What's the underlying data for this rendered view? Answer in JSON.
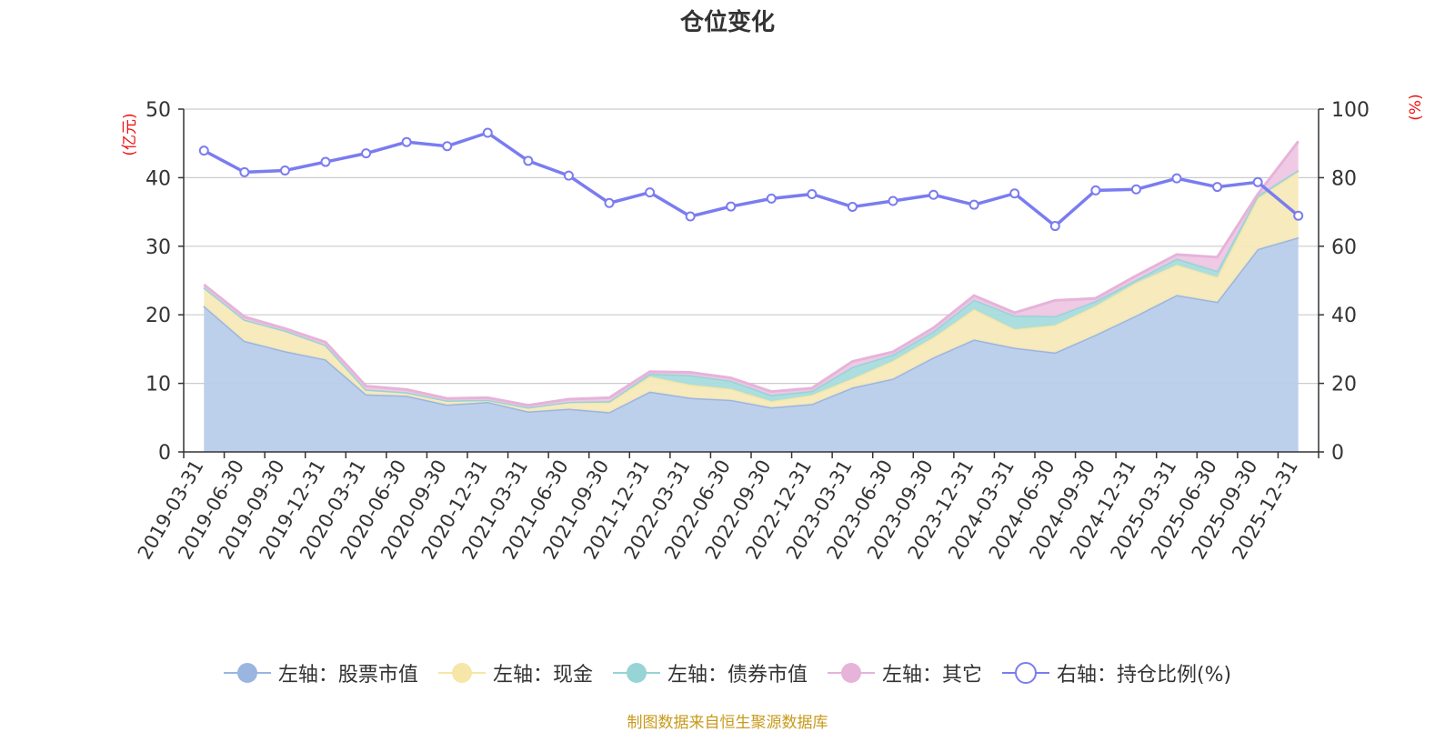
{
  "title": "仓位变化",
  "source": "制图数据来自恒生聚源数据库",
  "colors": {
    "stock": "#9ab5e0",
    "stock_fill": "#b8cdeb",
    "cash": "#f6e6a8",
    "cash_fill": "#f7e9b8",
    "bond": "#96d4d6",
    "bond_fill": "#a8dcde",
    "other": "#e6b3d9",
    "other_fill": "#efc7e4",
    "ratio": "#7a7cf0",
    "axis_unit": "#ee1111",
    "grid": "#cccccc",
    "text": "#333333"
  },
  "chart_data": {
    "type": "area",
    "title": "仓位变化",
    "y_left_label": "(亿元)",
    "y_right_label": "(%)",
    "y_left_range": [
      0,
      50
    ],
    "y_right_range": [
      0,
      100
    ],
    "y_left_ticks": [
      "0",
      "10",
      "20",
      "30",
      "40",
      "50"
    ],
    "y_right_ticks": [
      "0",
      "20",
      "40",
      "60",
      "80",
      "100"
    ],
    "grid": true,
    "legend_position": "bottom",
    "categories": [
      "2019-03-31",
      "2019-06-30",
      "2019-09-30",
      "2019-12-31",
      "2020-03-31",
      "2020-06-30",
      "2020-09-30",
      "2020-12-31",
      "2021-03-31",
      "2021-06-30",
      "2021-09-30",
      "2021-12-31",
      "2022-03-31",
      "2022-06-30",
      "2022-09-30",
      "2022-12-31",
      "2023-03-31",
      "2023-06-30",
      "2023-09-30",
      "2023-12-31",
      "2024-03-31",
      "2024-06-30",
      "2024-09-30",
      "2024-12-31",
      "2025-03-31",
      "2025-06-30",
      "2025-09-30",
      "2025-12-31"
    ],
    "stacked_series": [
      {
        "name": "左轴：股票市值",
        "key": "stock",
        "values": [
          21.3,
          16.2,
          14.7,
          13.5,
          8.4,
          8.2,
          6.9,
          7.3,
          5.9,
          6.3,
          5.8,
          8.8,
          7.9,
          7.6,
          6.5,
          7.0,
          9.4,
          10.7,
          13.8,
          16.4,
          15.2,
          14.5,
          17.1,
          19.9,
          22.9,
          21.9,
          29.6,
          31.3
        ]
      },
      {
        "name": "左轴：现金",
        "key": "cash",
        "values": [
          2.7,
          3.1,
          3.0,
          2.1,
          0.7,
          0.5,
          0.6,
          0.3,
          0.6,
          1.0,
          1.4,
          2.2,
          1.9,
          1.6,
          0.9,
          1.3,
          1.3,
          2.6,
          2.9,
          4.4,
          2.7,
          4.0,
          4.2,
          4.8,
          4.4,
          3.6,
          7.4,
          9.6
        ]
      },
      {
        "name": "左轴：债券市值",
        "key": "bond",
        "values": [
          0.0,
          0.0,
          0.0,
          0.0,
          0.0,
          0.0,
          0.0,
          0.0,
          0.0,
          0.0,
          0.2,
          0.4,
          1.4,
          1.2,
          0.9,
          0.6,
          1.7,
          0.9,
          0.9,
          1.4,
          2.0,
          1.3,
          0.7,
          0.4,
          0.9,
          0.9,
          0.4,
          0.2
        ]
      },
      {
        "name": "左轴：其它",
        "key": "other",
        "values": [
          0.4,
          0.4,
          0.3,
          0.4,
          0.5,
          0.4,
          0.3,
          0.3,
          0.3,
          0.4,
          0.5,
          0.3,
          0.4,
          0.4,
          0.5,
          0.4,
          0.8,
          0.4,
          0.5,
          0.6,
          0.4,
          2.3,
          0.4,
          0.6,
          0.6,
          2.0,
          0.2,
          4.2
        ]
      }
    ],
    "line_series": {
      "name": "右轴：持仓比例(%)",
      "key": "ratio",
      "values": [
        87.9,
        81.6,
        82.1,
        84.6,
        87.1,
        90.4,
        89.2,
        93.1,
        84.9,
        80.6,
        72.6,
        75.7,
        68.7,
        71.6,
        73.9,
        75.2,
        71.5,
        73.2,
        75.0,
        72.1,
        75.4,
        65.9,
        76.3,
        76.6,
        79.8,
        77.3,
        78.7,
        68.9
      ]
    }
  }
}
